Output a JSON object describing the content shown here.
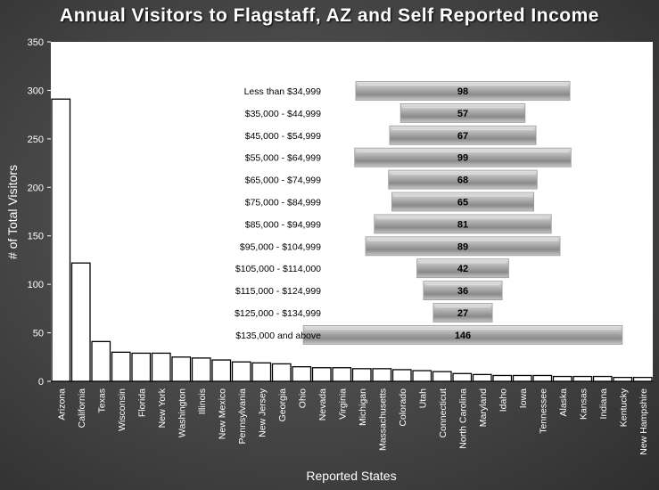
{
  "chart_data": {
    "type": "bar",
    "title": "Annual Visitors to Flagstaff, AZ and Self Reported Income",
    "xlabel": "Reported States",
    "ylabel": "# of Total Visitors",
    "ylim": [
      0,
      350
    ],
    "yticks": [
      0,
      50,
      100,
      150,
      200,
      250,
      300,
      350
    ],
    "grid": false,
    "categories": [
      "Arizona",
      "California",
      "Texas",
      "Wisconsin",
      "Florida",
      "New York",
      "Washington",
      "Illinois",
      "New Mexico",
      "Pennsylvania",
      "New Jersey",
      "Georgia",
      "Ohio",
      "Nevada",
      "Virginia",
      "Michigan",
      "Massachusetts",
      "Colorado",
      "Utah",
      "Connecticut",
      "North Carolina",
      "Maryland",
      "Idaho",
      "Iowa",
      "Tennessee",
      "Alaska",
      "Kansas",
      "Indiana",
      "Kentucky",
      "New Hampshire"
    ],
    "values": [
      291,
      122,
      41,
      30,
      29,
      29,
      25,
      24,
      22,
      20,
      19,
      18,
      15,
      14,
      14,
      13,
      13,
      12,
      11,
      10,
      8,
      7,
      6,
      6,
      6,
      5,
      5,
      5,
      4,
      4
    ],
    "inset": {
      "type": "bar",
      "orientation": "horizontal",
      "categories": [
        "Less than $34,999",
        "$35,000 - $44,999",
        "$45,000 - $54,999",
        "$55,000 - $64,999",
        "$65,000 - $74,999",
        "$75,000 - $84,999",
        "$85,000 - $94,999",
        "$95,000 - $104,999",
        "$105,000 - $114,000",
        "$115,000 - $124,999",
        "$125,000 - $134,999",
        "$135,000 and above"
      ],
      "values": [
        98,
        57,
        67,
        99,
        68,
        65,
        81,
        89,
        42,
        36,
        27,
        146
      ]
    }
  },
  "colors": {
    "bar_fill": "#ffffff",
    "bar_stroke": "#000000",
    "plot_bg": "#ffffff",
    "axis_text": "#ffffff",
    "income_bar_light": "#d9d9d9",
    "income_bar_dark": "#7a7a7a"
  }
}
